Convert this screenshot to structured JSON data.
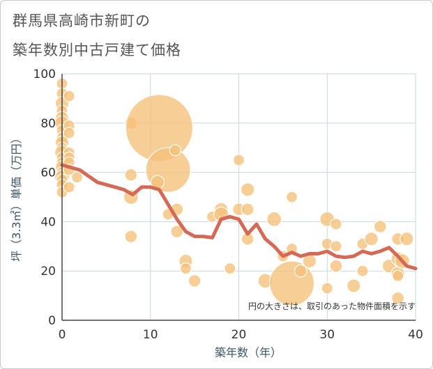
{
  "title_line1": "群馬県高崎市新町の",
  "title_line2": "築年数別中古戸建て価格",
  "chart_data": {
    "type": "scatter",
    "xlabel": "築年数（年）",
    "ylabel": "坪（3.3㎡）単価（万円）",
    "xlim": [
      0,
      40
    ],
    "ylim": [
      0,
      100
    ],
    "xticks": [
      "0",
      "10",
      "20",
      "30",
      "40"
    ],
    "yticks": [
      "0",
      "20",
      "40",
      "60",
      "80",
      "100"
    ],
    "grid": true,
    "note": "円の大きさは、取引のあった物件面積を示す",
    "colors": {
      "bubble": "#f5c27a",
      "bubble_stroke": "#ffffff",
      "trend": "#d46a55",
      "grid": "#c9d6e0",
      "axis": "#444444"
    },
    "bubbles": [
      {
        "x": 0,
        "y": 96,
        "s": 1
      },
      {
        "x": 0,
        "y": 92,
        "s": 1
      },
      {
        "x": 0,
        "y": 88,
        "s": 1.2
      },
      {
        "x": 0,
        "y": 85,
        "s": 1
      },
      {
        "x": 0,
        "y": 82,
        "s": 1.2
      },
      {
        "x": 0,
        "y": 80,
        "s": 1.3
      },
      {
        "x": 0,
        "y": 77,
        "s": 1
      },
      {
        "x": 0,
        "y": 74,
        "s": 1
      },
      {
        "x": 0,
        "y": 72,
        "s": 1.2
      },
      {
        "x": 0,
        "y": 70,
        "s": 1
      },
      {
        "x": 0,
        "y": 68,
        "s": 1.3
      },
      {
        "x": 0,
        "y": 66,
        "s": 1
      },
      {
        "x": 0,
        "y": 64,
        "s": 1
      },
      {
        "x": 0,
        "y": 62,
        "s": 1.2
      },
      {
        "x": 0,
        "y": 60,
        "s": 1
      },
      {
        "x": 0,
        "y": 58,
        "s": 1.3
      },
      {
        "x": 0,
        "y": 57,
        "s": 1
      },
      {
        "x": 0,
        "y": 55,
        "s": 1
      },
      {
        "x": 0,
        "y": 52,
        "s": 1
      },
      {
        "x": 0.8,
        "y": 91,
        "s": 1
      },
      {
        "x": 0.8,
        "y": 79,
        "s": 1
      },
      {
        "x": 0.8,
        "y": 76,
        "s": 1
      },
      {
        "x": 0.8,
        "y": 68,
        "s": 1
      },
      {
        "x": 0.8,
        "y": 66,
        "s": 1
      },
      {
        "x": 0.8,
        "y": 64,
        "s": 1
      },
      {
        "x": 0.8,
        "y": 61,
        "s": 1
      },
      {
        "x": 0.8,
        "y": 54,
        "s": 1
      },
      {
        "x": 1.7,
        "y": 58,
        "s": 1
      },
      {
        "x": 7.8,
        "y": 80,
        "s": 1.1
      },
      {
        "x": 7.8,
        "y": 59,
        "s": 1.1
      },
      {
        "x": 7.8,
        "y": 50,
        "s": 1.3
      },
      {
        "x": 7.8,
        "y": 34,
        "s": 1.1
      },
      {
        "x": 11,
        "y": 78,
        "s": 6
      },
      {
        "x": 12,
        "y": 61,
        "s": 4
      },
      {
        "x": 10.8,
        "y": 56,
        "s": 1.2
      },
      {
        "x": 12,
        "y": 43,
        "s": 1
      },
      {
        "x": 12.8,
        "y": 69,
        "s": 1
      },
      {
        "x": 13,
        "y": 45,
        "s": 1.1
      },
      {
        "x": 13,
        "y": 36,
        "s": 1.1
      },
      {
        "x": 14,
        "y": 24,
        "s": 1.2
      },
      {
        "x": 14,
        "y": 21,
        "s": 1
      },
      {
        "x": 15,
        "y": 16,
        "s": 1.1
      },
      {
        "x": 17,
        "y": 42,
        "s": 1
      },
      {
        "x": 18,
        "y": 45,
        "s": 1.2
      },
      {
        "x": 18,
        "y": 43,
        "s": 1.3
      },
      {
        "x": 19,
        "y": 21,
        "s": 1
      },
      {
        "x": 20,
        "y": 65,
        "s": 1
      },
      {
        "x": 20,
        "y": 45,
        "s": 1.1
      },
      {
        "x": 21,
        "y": 53,
        "s": 1.2
      },
      {
        "x": 21,
        "y": 45,
        "s": 1.1
      },
      {
        "x": 21,
        "y": 33,
        "s": 1.1
      },
      {
        "x": 23,
        "y": 16,
        "s": 1.3
      },
      {
        "x": 24,
        "y": 41,
        "s": 1.3
      },
      {
        "x": 25,
        "y": 26,
        "s": 1
      },
      {
        "x": 26,
        "y": 50,
        "s": 1
      },
      {
        "x": 26,
        "y": 29,
        "s": 1
      },
      {
        "x": 26,
        "y": 15,
        "s": 4
      },
      {
        "x": 27,
        "y": 20,
        "s": 1.1
      },
      {
        "x": 28,
        "y": 24,
        "s": 1.2
      },
      {
        "x": 30,
        "y": 41,
        "s": 1.3
      },
      {
        "x": 30,
        "y": 31,
        "s": 1
      },
      {
        "x": 30,
        "y": 13,
        "s": 1
      },
      {
        "x": 31,
        "y": 39,
        "s": 1
      },
      {
        "x": 31,
        "y": 30,
        "s": 1
      },
      {
        "x": 31,
        "y": 22,
        "s": 1.1
      },
      {
        "x": 33,
        "y": 14,
        "s": 1.2
      },
      {
        "x": 34,
        "y": 31,
        "s": 1
      },
      {
        "x": 34,
        "y": 20,
        "s": 1
      },
      {
        "x": 35,
        "y": 33,
        "s": 1.2
      },
      {
        "x": 36,
        "y": 38,
        "s": 1.1
      },
      {
        "x": 37,
        "y": 22,
        "s": 1.2
      },
      {
        "x": 38,
        "y": 33,
        "s": 1.1
      },
      {
        "x": 38,
        "y": 25,
        "s": 1.2
      },
      {
        "x": 38,
        "y": 19,
        "s": 1.2
      },
      {
        "x": 38,
        "y": 18,
        "s": 1
      },
      {
        "x": 38,
        "y": 9,
        "s": 1.1
      },
      {
        "x": 39,
        "y": 33,
        "s": 1.2
      },
      {
        "x": 38.5,
        "y": 24,
        "s": 1.3
      }
    ],
    "trend": {
      "x": [
        0,
        2,
        4,
        6,
        7,
        8,
        9,
        10,
        11,
        12,
        13,
        14,
        15,
        16,
        17,
        18,
        19,
        20,
        21,
        22,
        23,
        24,
        25,
        26,
        27,
        28,
        29,
        30,
        31,
        32,
        33,
        34,
        35,
        36,
        37,
        38,
        39,
        40
      ],
      "y": [
        63,
        61,
        56,
        54,
        53,
        51,
        54,
        54,
        53,
        47,
        41,
        36,
        34,
        34,
        33.5,
        41,
        42,
        41,
        35,
        39,
        33,
        30,
        26,
        27.5,
        26,
        27,
        27,
        28,
        26,
        25.5,
        26,
        28,
        27,
        28,
        29.5,
        26,
        22,
        21
      ]
    }
  }
}
